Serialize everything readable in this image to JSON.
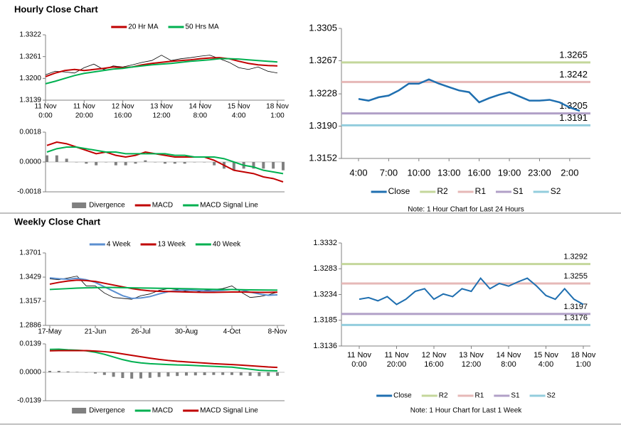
{
  "chart_data": [
    {
      "type": "line",
      "title": "Hourly Close Chart",
      "legend": "top",
      "ylim": [
        1.3139,
        1.3322
      ],
      "yticks": [
        1.3139,
        {
          "value": 1.32,
          "label": "1.3200"
        },
        1.3261,
        1.3322
      ],
      "categories": [
        [
          "11 Nov",
          "0:00"
        ],
        null,
        null,
        null,
        [
          "11 Nov",
          "20:00"
        ],
        null,
        null,
        null,
        [
          "12 Nov",
          "16:00"
        ],
        null,
        null,
        null,
        [
          "13 Nov",
          "12:00"
        ],
        null,
        null,
        null,
        [
          "14 Nov",
          "8:00"
        ],
        null,
        null,
        null,
        [
          "15 Nov",
          "4:00"
        ],
        null,
        null,
        null,
        [
          "18 Nov",
          "1:00"
        ]
      ],
      "close_color": "#000000",
      "close": [
        1.321,
        1.322,
        1.3218,
        1.3215,
        1.323,
        1.324,
        1.3225,
        1.3235,
        1.3232,
        1.3238,
        1.3245,
        1.325,
        1.3265,
        1.325,
        1.3255,
        1.3258,
        1.3262,
        1.3265,
        1.3255,
        1.3245,
        1.323,
        1.3225,
        1.3232,
        1.322,
        1.3215
      ],
      "series": [
        {
          "name": "20 Hr MA",
          "color": "#c00000",
          "values": [
            1.3205,
            1.3215,
            1.3222,
            1.3225,
            1.3222,
            1.3225,
            1.3228,
            1.3232,
            1.323,
            1.3232,
            1.3238,
            1.3242,
            1.3245,
            1.3248,
            1.325,
            1.3252,
            1.3255,
            1.3257,
            1.3258,
            1.3255,
            1.3248,
            1.3242,
            1.3238,
            1.3236,
            1.3235
          ]
        },
        {
          "name": "50 Hrs MA",
          "color": "#00b050",
          "values": [
            1.3185,
            1.3192,
            1.32,
            1.3208,
            1.3214,
            1.3218,
            1.3222,
            1.3226,
            1.3228,
            1.3232,
            1.3235,
            1.3238,
            1.324,
            1.3242,
            1.3245,
            1.3248,
            1.325,
            1.3252,
            1.3255,
            1.3255,
            1.3254,
            1.3252,
            1.325,
            1.3248,
            1.3246
          ]
        }
      ]
    },
    {
      "type": "macd",
      "legend": "bottom",
      "ylim": [
        -0.0018,
        0.0018
      ],
      "yticks": [
        0.0018,
        {
          "value": 0,
          "label": "0.0000"
        },
        -0.0018
      ],
      "series": [
        {
          "name": "Divergence",
          "type": "bar",
          "color": "#808080",
          "values": [
            0.0004,
            0.0004,
            0.0002,
            0.0,
            -0.0001,
            -0.0002,
            0.0,
            -0.0002,
            -0.0002,
            -0.0001,
            0.0001,
            0.0,
            -0.0001,
            -0.0001,
            -0.0001,
            0.0,
            0.0,
            -0.0002,
            -0.0004,
            -0.0005,
            -0.0004,
            -0.0004,
            -0.0004,
            -0.0004,
            -0.0005
          ]
        },
        {
          "name": "MACD",
          "color": "#c00000",
          "values": [
            0.001,
            0.0012,
            0.0011,
            0.0009,
            0.0007,
            0.0005,
            0.0006,
            0.0004,
            0.0003,
            0.0004,
            0.0006,
            0.0005,
            0.0004,
            0.0003,
            0.0003,
            0.0003,
            0.0003,
            0.0001,
            -0.0002,
            -0.0005,
            -0.0006,
            -0.0007,
            -0.0009,
            -0.001,
            -0.0012
          ]
        },
        {
          "name": "MACD Signal Line",
          "color": "#00b050",
          "values": [
            0.0006,
            0.0008,
            0.0009,
            0.0009,
            0.0008,
            0.0007,
            0.0006,
            0.0006,
            0.0005,
            0.0005,
            0.0005,
            0.0005,
            0.0005,
            0.0004,
            0.0004,
            0.0003,
            0.0003,
            0.0003,
            0.0002,
            0.0,
            -0.0002,
            -0.0003,
            -0.0005,
            -0.0006,
            -0.0007
          ]
        }
      ]
    },
    {
      "type": "line",
      "legend": "bottom",
      "note": "Note: 1 Hour Chart for Last 24 Hours",
      "ylim": [
        1.3152,
        1.3305
      ],
      "yticks": [
        1.3152,
        {
          "value": 1.319,
          "label": "1.3190"
        },
        1.3228,
        1.3267,
        1.3305
      ],
      "categories": [
        "4:00",
        null,
        null,
        "7:00",
        null,
        null,
        "10:00",
        null,
        null,
        "13:00",
        null,
        null,
        "16:00",
        null,
        null,
        "19:00",
        null,
        null,
        "23:00",
        null,
        null,
        "2:00",
        null
      ],
      "series": [
        {
          "name": "Close",
          "color": "#1f6fb0",
          "values": [
            1.3222,
            1.322,
            1.3224,
            1.3226,
            1.3232,
            1.324,
            1.324,
            1.3245,
            1.324,
            1.3236,
            1.3232,
            1.323,
            1.3218,
            1.3223,
            1.3227,
            1.323,
            1.3225,
            1.322,
            1.322,
            1.3221,
            1.3218,
            1.3212,
            1.3208
          ]
        },
        {
          "name": "R2",
          "color": "#c4d79b",
          "value": 1.3265
        },
        {
          "name": "R1",
          "color": "#e6b8b7",
          "value": 1.3242
        },
        {
          "name": "S1",
          "color": "#b1a0c7",
          "value": 1.3205
        },
        {
          "name": "S2",
          "color": "#93cddd",
          "value": 1.3191
        }
      ]
    },
    {
      "type": "line",
      "title": "Weekly Close Chart",
      "legend": "top",
      "ylim": [
        1.2886,
        1.3701
      ],
      "yticks": [
        1.2886,
        1.3157,
        1.3429,
        1.3701
      ],
      "categories": [
        "17-May",
        null,
        null,
        null,
        null,
        "21-Jun",
        null,
        null,
        null,
        null,
        "26-Jul",
        null,
        null,
        null,
        null,
        "30-Aug",
        null,
        null,
        null,
        null,
        "4-Oct",
        null,
        null,
        null,
        null,
        "8-Nov"
      ],
      "close_color": "#000000",
      "close": [
        1.341,
        1.34,
        1.342,
        1.344,
        1.333,
        1.333,
        1.325,
        1.32,
        1.319,
        1.318,
        1.322,
        1.324,
        1.328,
        1.33,
        1.329,
        1.327,
        1.326,
        1.328,
        1.329,
        1.33,
        1.333,
        1.326,
        1.32,
        1.321,
        1.323,
        1.326
      ],
      "series": [
        {
          "name": "4 Week",
          "color": "#5b8fd0",
          "values": [
            1.342,
            1.341,
            1.3405,
            1.3415,
            1.34,
            1.337,
            1.332,
            1.327,
            1.322,
            1.319,
            1.3195,
            1.321,
            1.324,
            1.3265,
            1.328,
            1.3285,
            1.328,
            1.3275,
            1.3275,
            1.328,
            1.329,
            1.3285,
            1.326,
            1.324,
            1.3225,
            1.323
          ]
        },
        {
          "name": "13 Week",
          "color": "#c00000",
          "values": [
            1.335,
            1.337,
            1.3385,
            1.3395,
            1.339,
            1.338,
            1.336,
            1.334,
            1.332,
            1.33,
            1.3285,
            1.3275,
            1.327,
            1.3268,
            1.3265,
            1.3262,
            1.326,
            1.3258,
            1.3258,
            1.326,
            1.3262,
            1.3262,
            1.326,
            1.3258,
            1.3258,
            1.326
          ]
        },
        {
          "name": "40 Week",
          "color": "#00b050",
          "values": [
            1.329,
            1.3295,
            1.33,
            1.3305,
            1.3308,
            1.331,
            1.3312,
            1.3312,
            1.331,
            1.3308,
            1.3306,
            1.3305,
            1.3303,
            1.3302,
            1.33,
            1.3298,
            1.3296,
            1.3294,
            1.3292,
            1.329,
            1.329,
            1.3288,
            1.3286,
            1.3285,
            1.3284,
            1.3283
          ]
        }
      ]
    },
    {
      "type": "macd",
      "legend": "bottom",
      "ylim": [
        -0.0139,
        0.0139
      ],
      "yticks": [
        0.0139,
        {
          "value": 0,
          "label": "0.0000"
        },
        -0.0139
      ],
      "series": [
        {
          "name": "Divergence",
          "type": "bar",
          "color": "#808080",
          "values": [
            0.0007,
            0.0007,
            0.0004,
            0.0002,
            -0.0001,
            -0.0006,
            -0.0013,
            -0.0022,
            -0.0028,
            -0.0031,
            -0.003,
            -0.0027,
            -0.0023,
            -0.002,
            -0.0018,
            -0.0016,
            -0.0015,
            -0.0014,
            -0.0013,
            -0.0013,
            -0.0013,
            -0.0015,
            -0.0017,
            -0.0019,
            -0.0018,
            -0.0017
          ]
        },
        {
          "name": "MACD",
          "color": "#00b050",
          "values": [
            0.0112,
            0.0113,
            0.011,
            0.0108,
            0.0105,
            0.0098,
            0.0088,
            0.0075,
            0.0062,
            0.0052,
            0.0046,
            0.0042,
            0.004,
            0.0038,
            0.0036,
            0.0035,
            0.0033,
            0.0031,
            0.0029,
            0.0027,
            0.0025,
            0.002,
            0.0015,
            0.001,
            0.0008,
            0.0007
          ]
        },
        {
          "name": "MACD Signal Line",
          "color": "#c00000",
          "values": [
            0.0105,
            0.0106,
            0.0106,
            0.0106,
            0.0106,
            0.0104,
            0.0101,
            0.0097,
            0.009,
            0.0083,
            0.0076,
            0.0069,
            0.0063,
            0.0058,
            0.0054,
            0.0051,
            0.0048,
            0.0045,
            0.0042,
            0.004,
            0.0038,
            0.0035,
            0.0032,
            0.0029,
            0.0026,
            0.0024
          ]
        }
      ]
    },
    {
      "type": "line",
      "legend": "bottom",
      "note": "Note: 1 Hour Chart for Last 1 Week",
      "ylim": [
        1.3136,
        1.3332
      ],
      "yticks": [
        1.3136,
        1.3185,
        1.3234,
        1.3283,
        1.3332
      ],
      "categories": [
        [
          "11 Nov",
          "0:00"
        ],
        null,
        null,
        null,
        [
          "11 Nov",
          "20:00"
        ],
        null,
        null,
        null,
        [
          "12 Nov",
          "16:00"
        ],
        null,
        null,
        null,
        [
          "13 Nov",
          "12:00"
        ],
        null,
        null,
        null,
        [
          "14 Nov",
          "8:00"
        ],
        null,
        null,
        null,
        [
          "15 Nov",
          "4:00"
        ],
        null,
        null,
        null,
        [
          "18 Nov",
          "1:00"
        ]
      ],
      "series": [
        {
          "name": "Close",
          "color": "#1f6fb0",
          "values": [
            1.3225,
            1.3228,
            1.3222,
            1.323,
            1.3215,
            1.3225,
            1.324,
            1.3245,
            1.3225,
            1.3235,
            1.323,
            1.3245,
            1.324,
            1.3265,
            1.3245,
            1.3255,
            1.325,
            1.3258,
            1.3265,
            1.325,
            1.3232,
            1.3225,
            1.3245,
            1.3225,
            1.3215
          ]
        },
        {
          "name": "R2",
          "color": "#c4d79b",
          "value": 1.3292
        },
        {
          "name": "R1",
          "color": "#e6b8b7",
          "value": 1.3255
        },
        {
          "name": "S1",
          "color": "#b1a0c7",
          "value": 1.3197
        },
        {
          "name": "S2",
          "color": "#93cddd",
          "value": 1.3176
        }
      ]
    }
  ]
}
